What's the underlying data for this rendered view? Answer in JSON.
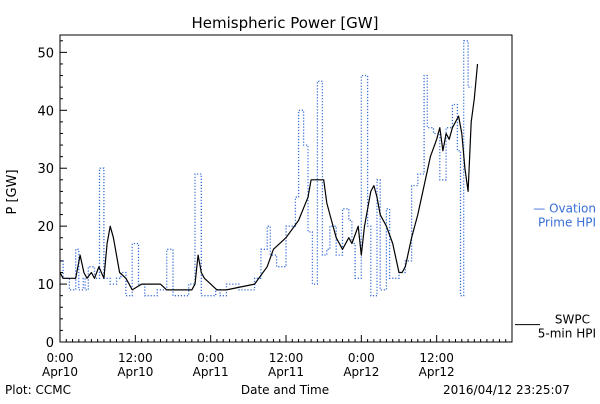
{
  "chart_data": {
    "type": "line",
    "title": "Hemispheric Power [GW]",
    "xlabel": "Date and Time",
    "ylabel": "P [GW]",
    "footer_left": "Plot: CCMC",
    "footer_right": "2016/04/12 23:25:07",
    "x_unit": "hours since 2016-04-10 00:00 UT",
    "xlim": [
      0,
      72
    ],
    "ylim": [
      0,
      53
    ],
    "y_ticks": [
      0,
      10,
      20,
      30,
      40,
      50
    ],
    "y_minor_step": 2,
    "x_ticks": [
      {
        "x": 0,
        "line1": "0:00",
        "line2": "Apr10"
      },
      {
        "x": 12,
        "line1": "12:00",
        "line2": "Apr10"
      },
      {
        "x": 24,
        "line1": "0:00",
        "line2": "Apr11"
      },
      {
        "x": 36,
        "line1": "12:00",
        "line2": "Apr11"
      },
      {
        "x": 48,
        "line1": "0:00",
        "line2": "Apr12"
      },
      {
        "x": 60,
        "line1": "12:00",
        "line2": "Apr12"
      }
    ],
    "x_minor_step": 1,
    "series": [
      {
        "name": "Ovation Prime HPI",
        "legend_lines": [
          "— Ovation",
          "Prime HPI"
        ],
        "color": "#3a6fd8",
        "style": "dotted-step",
        "points": [
          [
            0,
            14
          ],
          [
            0.5,
            11
          ],
          [
            1.5,
            9
          ],
          [
            2.5,
            16
          ],
          [
            3.0,
            9
          ],
          [
            3.7,
            11
          ],
          [
            4.0,
            9
          ],
          [
            4.5,
            13
          ],
          [
            5.5,
            11
          ],
          [
            6.3,
            30
          ],
          [
            7.0,
            11
          ],
          [
            8.0,
            10
          ],
          [
            9.0,
            11
          ],
          [
            9.7,
            12
          ],
          [
            10.5,
            8
          ],
          [
            11.5,
            17
          ],
          [
            12.5,
            10
          ],
          [
            13.5,
            8
          ],
          [
            15.5,
            9
          ],
          [
            17.0,
            16
          ],
          [
            18.0,
            8
          ],
          [
            20.5,
            10
          ],
          [
            21.5,
            29
          ],
          [
            22.5,
            8
          ],
          [
            24.8,
            9
          ],
          [
            25.5,
            8
          ],
          [
            26.5,
            10
          ],
          [
            28.5,
            9
          ],
          [
            31.0,
            11
          ],
          [
            32.0,
            16
          ],
          [
            33.0,
            20
          ],
          [
            33.5,
            15
          ],
          [
            34.5,
            13
          ],
          [
            36.0,
            20
          ],
          [
            37.5,
            25
          ],
          [
            38.0,
            40
          ],
          [
            38.8,
            34
          ],
          [
            39.5,
            19
          ],
          [
            40.2,
            10
          ],
          [
            41.0,
            45
          ],
          [
            41.8,
            15
          ],
          [
            42.5,
            16
          ],
          [
            43.0,
            20
          ],
          [
            44.0,
            15
          ],
          [
            45.0,
            23
          ],
          [
            46.0,
            21
          ],
          [
            46.5,
            17
          ],
          [
            47.0,
            11
          ],
          [
            48.0,
            46
          ],
          [
            49.0,
            20
          ],
          [
            49.5,
            8
          ],
          [
            50.5,
            28
          ],
          [
            51.0,
            9
          ],
          [
            52.0,
            23
          ],
          [
            52.5,
            11
          ],
          [
            54.0,
            12
          ],
          [
            55.0,
            14
          ],
          [
            56.0,
            27
          ],
          [
            57.0,
            29
          ],
          [
            58.0,
            46
          ],
          [
            58.5,
            37
          ],
          [
            59.5,
            36
          ],
          [
            60.5,
            28
          ],
          [
            61.5,
            37
          ],
          [
            62.5,
            41
          ],
          [
            63.3,
            33
          ],
          [
            63.8,
            8
          ],
          [
            64.3,
            52
          ],
          [
            65.0,
            44
          ]
        ]
      },
      {
        "name": "SWPC 5-min HPI",
        "legend_lines": [
          "SWPC",
          "5-min HPI"
        ],
        "color": "#000000",
        "style": "solid",
        "points": [
          [
            0,
            12
          ],
          [
            0.5,
            11
          ],
          [
            2.5,
            11
          ],
          [
            3.2,
            15
          ],
          [
            3.8,
            12
          ],
          [
            4.3,
            11
          ],
          [
            5.0,
            12
          ],
          [
            5.5,
            11
          ],
          [
            6.2,
            13
          ],
          [
            7.0,
            11
          ],
          [
            7.5,
            17
          ],
          [
            8.0,
            20
          ],
          [
            8.5,
            18
          ],
          [
            9.0,
            15
          ],
          [
            9.5,
            12
          ],
          [
            10.5,
            11
          ],
          [
            11.0,
            10
          ],
          [
            11.5,
            9
          ],
          [
            13.0,
            10
          ],
          [
            16.0,
            10
          ],
          [
            17.0,
            9
          ],
          [
            21.0,
            9
          ],
          [
            21.5,
            10
          ],
          [
            22.0,
            15
          ],
          [
            22.5,
            12
          ],
          [
            23.0,
            11
          ],
          [
            24.0,
            10
          ],
          [
            25.0,
            9
          ],
          [
            26.5,
            9
          ],
          [
            31.0,
            10
          ],
          [
            33.0,
            13
          ],
          [
            34.0,
            16
          ],
          [
            36.0,
            18
          ],
          [
            38.0,
            21
          ],
          [
            39.5,
            25
          ],
          [
            40.0,
            28
          ],
          [
            42.0,
            28
          ],
          [
            42.5,
            24
          ],
          [
            43.0,
            22
          ],
          [
            44.0,
            18
          ],
          [
            45.0,
            16
          ],
          [
            46.0,
            18
          ],
          [
            46.5,
            17
          ],
          [
            47.5,
            20
          ],
          [
            48.0,
            15
          ],
          [
            48.5,
            20
          ],
          [
            49.5,
            26
          ],
          [
            50.0,
            27
          ],
          [
            50.5,
            25
          ],
          [
            51.0,
            22
          ],
          [
            52.0,
            20
          ],
          [
            53.0,
            17
          ],
          [
            54.0,
            12
          ],
          [
            54.5,
            12
          ],
          [
            55.0,
            13
          ],
          [
            56.0,
            18
          ],
          [
            57.0,
            22
          ],
          [
            58.0,
            27
          ],
          [
            59.0,
            32
          ],
          [
            60.0,
            35
          ],
          [
            60.5,
            37
          ],
          [
            61.0,
            33
          ],
          [
            61.5,
            36
          ],
          [
            62.0,
            35
          ],
          [
            62.5,
            37
          ],
          [
            63.5,
            39
          ],
          [
            64.0,
            36
          ],
          [
            64.5,
            30
          ],
          [
            65.0,
            26
          ],
          [
            65.5,
            38
          ],
          [
            66.0,
            42
          ],
          [
            66.5,
            48
          ]
        ]
      }
    ]
  }
}
